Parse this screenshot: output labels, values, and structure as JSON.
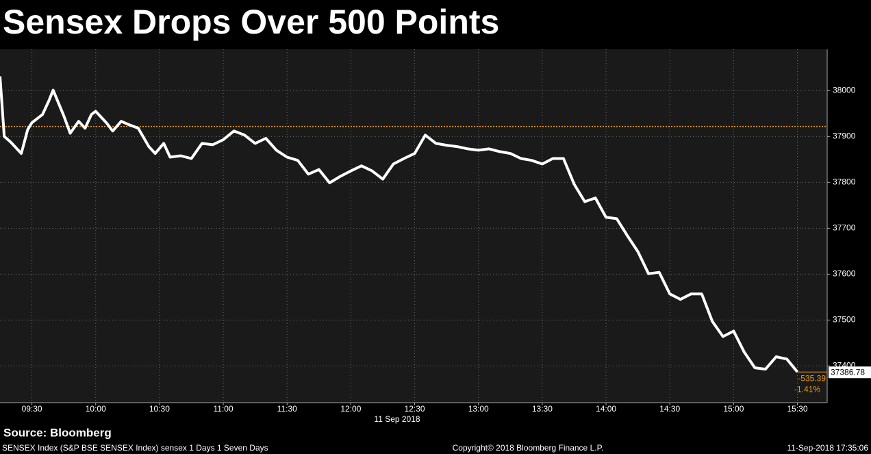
{
  "chart_data": {
    "type": "line",
    "title": "Sensex Drops Over 500 Points",
    "x_label": "11 Sep 2018",
    "source": "Source: Bloomberg",
    "footer_left": "SENSEX Index (S&P BSE SENSEX Index) sensex 1 Days 1 Seven Days",
    "footer_center": "Copyright© 2018 Bloomberg Finance L.P.",
    "footer_right": "11-Sep-2018 17:35:06",
    "x": [
      "09:15",
      "09:17",
      "09:20",
      "09:25",
      "09:28",
      "09:30",
      "09:35",
      "09:38",
      "09:40",
      "09:45",
      "09:48",
      "09:52",
      "09:55",
      "09:58",
      "10:00",
      "10:05",
      "10:08",
      "10:12",
      "10:15",
      "10:20",
      "10:25",
      "10:28",
      "10:32",
      "10:35",
      "10:40",
      "10:45",
      "10:50",
      "10:55",
      "11:00",
      "11:05",
      "11:10",
      "11:15",
      "11:20",
      "11:25",
      "11:30",
      "11:35",
      "11:40",
      "11:45",
      "11:50",
      "11:55",
      "12:00",
      "12:05",
      "12:10",
      "12:15",
      "12:20",
      "12:25",
      "12:30",
      "12:35",
      "12:40",
      "12:45",
      "12:50",
      "12:55",
      "13:00",
      "13:05",
      "13:10",
      "13:15",
      "13:20",
      "13:25",
      "13:30",
      "13:35",
      "13:40",
      "13:45",
      "13:50",
      "13:55",
      "14:00",
      "14:05",
      "14:10",
      "14:15",
      "14:20",
      "14:25",
      "14:30",
      "14:35",
      "14:40",
      "14:45",
      "14:50",
      "14:55",
      "15:00",
      "15:05",
      "15:10",
      "15:15",
      "15:20",
      "15:25",
      "15:30"
    ],
    "series": [
      {
        "name": "SENSEX",
        "color": "#ffffff",
        "values": [
          38031,
          37900,
          37888,
          37863,
          37915,
          37930,
          37948,
          37978,
          38001,
          37945,
          37907,
          37933,
          37918,
          37948,
          37955,
          37930,
          37912,
          37933,
          37927,
          37918,
          37878,
          37863,
          37885,
          37855,
          37858,
          37852,
          37885,
          37882,
          37893,
          37912,
          37903,
          37885,
          37896,
          37870,
          37855,
          37848,
          37818,
          37828,
          37799,
          37813,
          37825,
          37836,
          37825,
          37807,
          37840,
          37852,
          37863,
          37903,
          37885,
          37881,
          37878,
          37873,
          37870,
          37873,
          37867,
          37863,
          37852,
          37848,
          37840,
          37852,
          37852,
          37796,
          37758,
          37766,
          37724,
          37721,
          37684,
          37649,
          37601,
          37604,
          37557,
          37545,
          37557,
          37557,
          37497,
          37464,
          37476,
          37430,
          37396,
          37393,
          37420,
          37415,
          37387
        ]
      }
    ],
    "xlim": [
      "09:15",
      "15:44"
    ],
    "xticks": [
      "09:30",
      "10:00",
      "10:30",
      "11:00",
      "11:30",
      "12:00",
      "12:30",
      "13:00",
      "13:30",
      "14:00",
      "14:30",
      "15:00",
      "15:30"
    ],
    "ylim": [
      37320,
      38090
    ],
    "yticks": [
      37400,
      37500,
      37600,
      37700,
      37800,
      37900,
      38000
    ],
    "grid": true,
    "reference_line": 37922,
    "reference_color": "#f39c12",
    "last_value": 37386.78,
    "change": -535.39,
    "change_pct": "-1.41%"
  }
}
